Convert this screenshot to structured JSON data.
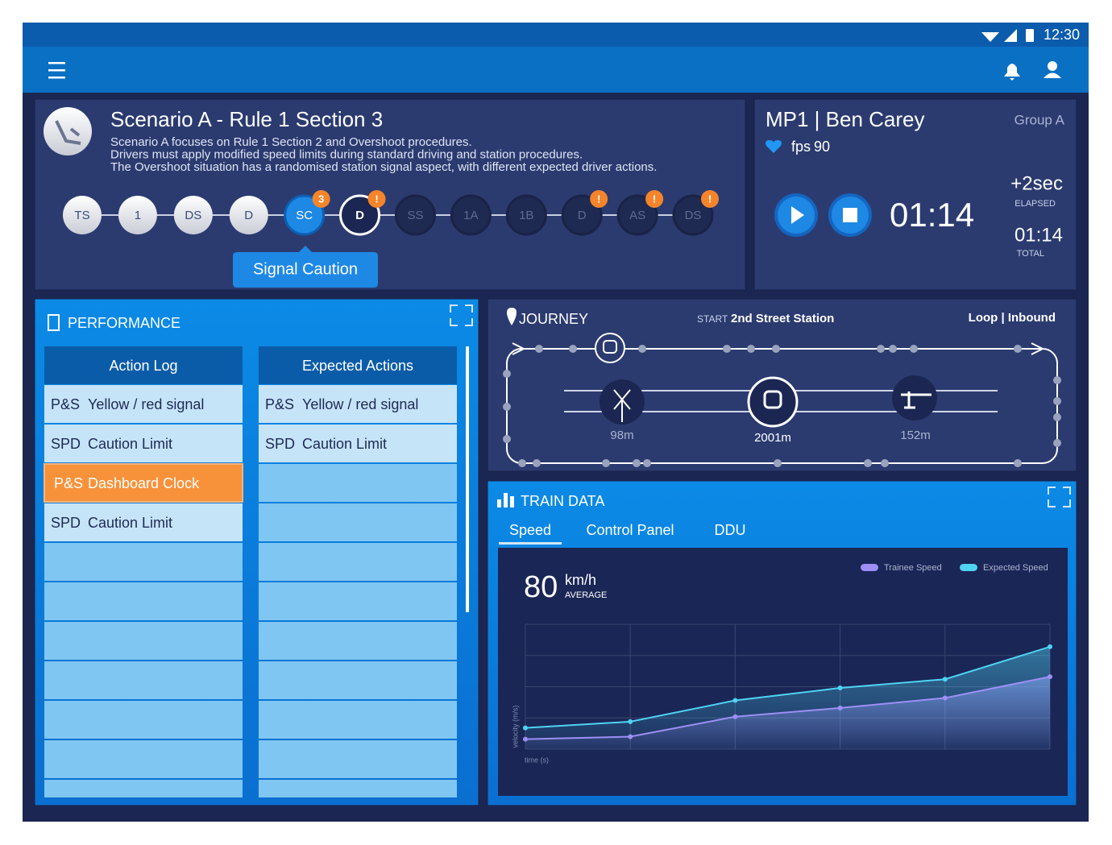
{
  "status_bar": {
    "time": "12:30"
  },
  "scenario": {
    "title": "Scenario A - Rule 1 Section 3",
    "description": [
      "Scenario A focuses on Rule 1 Section 2 and Overshoot procedures.",
      "Drivers must apply modified speed limits during standard driving and station procedures.",
      "The Overshoot situation has a randomised station signal aspect, with different expected driver actions."
    ],
    "steps": [
      {
        "label": "TS",
        "state": "done"
      },
      {
        "label": "1",
        "state": "done"
      },
      {
        "label": "DS",
        "state": "done"
      },
      {
        "label": "D",
        "state": "done"
      },
      {
        "label": "SC",
        "state": "active",
        "badge": "3"
      },
      {
        "label": "D",
        "state": "current",
        "badge": "!"
      },
      {
        "label": "SS",
        "state": "upcoming"
      },
      {
        "label": "1A",
        "state": "upcoming"
      },
      {
        "label": "1B",
        "state": "upcoming"
      },
      {
        "label": "D",
        "state": "upcoming",
        "badge": "!"
      },
      {
        "label": "AS",
        "state": "upcoming",
        "badge": "!"
      },
      {
        "label": "DS",
        "state": "upcoming",
        "badge": "!"
      }
    ],
    "tooltip": "Signal Caution"
  },
  "player": {
    "name": "MP1 | Ben Carey",
    "group": "Group A",
    "fps_label": "fps",
    "fps": 90,
    "timer": "01:14",
    "elapsed": "+2sec",
    "elapsed_label": "ELAPSED",
    "total": "01:14",
    "total_label": "TOTAL"
  },
  "performance": {
    "title": "PERFORMANCE",
    "action_log": {
      "header": "Action Log",
      "rows": [
        {
          "code": "P&S",
          "text": "Yellow / red signal"
        },
        {
          "code": "SPD",
          "text": "Caution Limit"
        },
        {
          "code": "P&S",
          "text": "Dashboard Clock",
          "highlight": true
        },
        {
          "code": "SPD",
          "text": "Caution Limit"
        }
      ]
    },
    "expected_actions": {
      "header": "Expected Actions",
      "rows": [
        {
          "code": "P&S",
          "text": "Yellow / red signal"
        },
        {
          "code": "SPD",
          "text": "Caution Limit"
        }
      ]
    }
  },
  "journey": {
    "title": "JOURNEY",
    "start_label": "START",
    "start_station": "2nd Street Station",
    "route": "Loop | Inbound",
    "markers": [
      {
        "distance": "98m"
      },
      {
        "distance": "2001m"
      },
      {
        "distance": "152m"
      }
    ]
  },
  "train_data": {
    "title": "TRAIN DATA",
    "tabs": [
      "Speed",
      "Control Panel",
      "DDU"
    ],
    "active_tab": 0,
    "average": 80,
    "unit": "km/h",
    "average_label": "AVERAGE"
  },
  "chart_data": {
    "type": "line",
    "categories": [
      null,
      null,
      null,
      null,
      null,
      null
    ],
    "xlabel": "time (s)",
    "ylabel": "velocity (m/s)",
    "ylim": [
      0,
      100
    ],
    "yticks": [
      0,
      25,
      50,
      75,
      100
    ],
    "grid": true,
    "series": [
      {
        "name": "Trainee Speed",
        "color": "#9d8ff5",
        "values": [
          8,
          10,
          26,
          33,
          41,
          58
        ]
      },
      {
        "name": "Expected Speed",
        "color": "#4fd3f2",
        "values": [
          17,
          22,
          39,
          49,
          56,
          82
        ]
      }
    ]
  }
}
